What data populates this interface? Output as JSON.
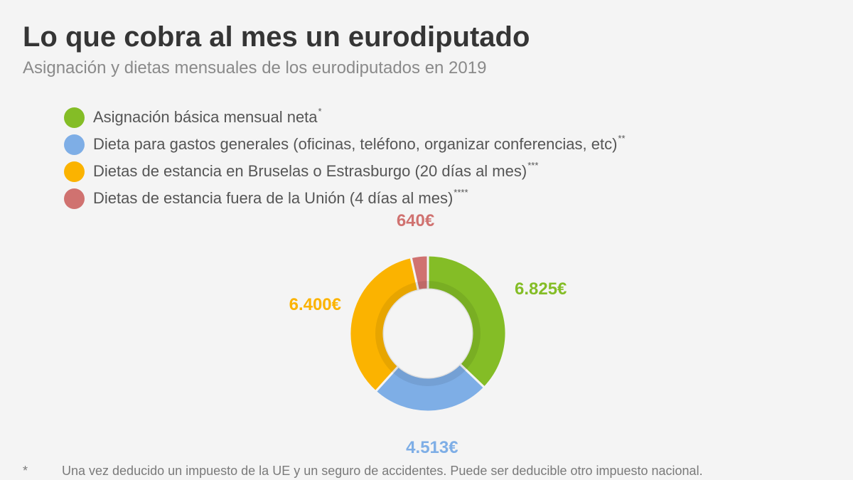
{
  "header": {
    "title": "Lo que cobra al mes un eurodiputado",
    "subtitle": "Asignación y dietas mensuales de los eurodiputados en 2019"
  },
  "legend": [
    {
      "label": "Asignación básica mensual neta",
      "mark": "*",
      "color": "#84bd26"
    },
    {
      "label": "Dieta para gastos generales (oficinas, teléfono, organizar conferencias, etc)",
      "mark": "**",
      "color": "#7eaee6"
    },
    {
      "label": "Dietas de estancia en Bruselas o Estrasburgo (20 días al mes)",
      "mark": "***",
      "color": "#fbb300"
    },
    {
      "label": "Dietas de estancia fuera de la Unión (4 días al mes)",
      "mark": "****",
      "color": "#d07270"
    }
  ],
  "chart_data": {
    "type": "pie",
    "variant": "donut",
    "start_angle_deg": 0,
    "direction": "clockwise",
    "categories": [
      "Asignación básica mensual neta",
      "Dieta para gastos generales (oficinas, teléfono, organizar conferencias, etc)",
      "Dietas de estancia en Bruselas o Estrasburgo (20 días al mes)",
      "Dietas de estancia fuera de la Unión (4 días al mes)"
    ],
    "values": [
      6825,
      4513,
      6400,
      640
    ],
    "data_labels": [
      "6.825€",
      "4.513€",
      "6.400€",
      "640€"
    ],
    "colors": [
      "#84bd26",
      "#7eaee6",
      "#fbb300",
      "#d07270"
    ]
  },
  "footnote": {
    "mark": "*",
    "text": "Una vez deducido un impuesto de la UE y un seguro de accidentes. Puede ser deducible otro impuesto nacional."
  }
}
